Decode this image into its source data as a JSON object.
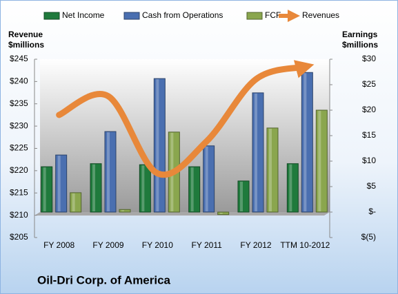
{
  "chart_data": {
    "type": "bar",
    "title": "Oil-Dri Corp. of America",
    "ylabel": [
      "Revenue",
      "$millions"
    ],
    "y2label": [
      "Earnings",
      "$millions"
    ],
    "categories": [
      "FY 2008",
      "FY 2009",
      "FY 2010",
      "FY 2011",
      "FY 2012",
      "TTM 10-2012"
    ],
    "series": [
      {
        "name": "Net Income",
        "type": "bar",
        "axis": "y2",
        "color": "#1f7a3c",
        "values": [
          8.9,
          9.5,
          9.3,
          8.9,
          6.1,
          9.5
        ]
      },
      {
        "name": "Cash from Operations",
        "type": "bar",
        "axis": "y2",
        "color": "#4a6fb0",
        "values": [
          11.2,
          15.8,
          26.2,
          13,
          23.4,
          27.4
        ]
      },
      {
        "name": "FCF",
        "type": "bar",
        "axis": "y2",
        "color": "#8aa64e",
        "values": [
          3.8,
          0.5,
          15.7,
          -0.5,
          16.5,
          20
        ]
      },
      {
        "name": "Revenues",
        "type": "line",
        "axis": "y",
        "color": "#e8883a",
        "values": [
          232.5,
          236.7,
          219.4,
          226.6,
          240.5,
          243.3
        ]
      }
    ],
    "ylim": [
      205,
      245
    ],
    "yticks": [
      {
        "value": 205,
        "label": "$205"
      },
      {
        "value": 210,
        "label": "$210"
      },
      {
        "value": 215,
        "label": "$215"
      },
      {
        "value": 220,
        "label": "$220"
      },
      {
        "value": 225,
        "label": "$225"
      },
      {
        "value": 230,
        "label": "$230"
      },
      {
        "value": 235,
        "label": "$235"
      },
      {
        "value": 240,
        "label": "$240"
      },
      {
        "value": 245,
        "label": "$245"
      }
    ],
    "y2lim": [
      -5,
      30
    ],
    "y2ticks": [
      {
        "value": -5,
        "label": "$(5)"
      },
      {
        "value": 0,
        "label": "$-"
      },
      {
        "value": 5,
        "label": "$5"
      },
      {
        "value": 10,
        "label": "$10"
      },
      {
        "value": 15,
        "label": "$15"
      },
      {
        "value": 20,
        "label": "$20"
      },
      {
        "value": 25,
        "label": "$25"
      },
      {
        "value": 30,
        "label": "$30"
      }
    ],
    "legend": "top"
  }
}
